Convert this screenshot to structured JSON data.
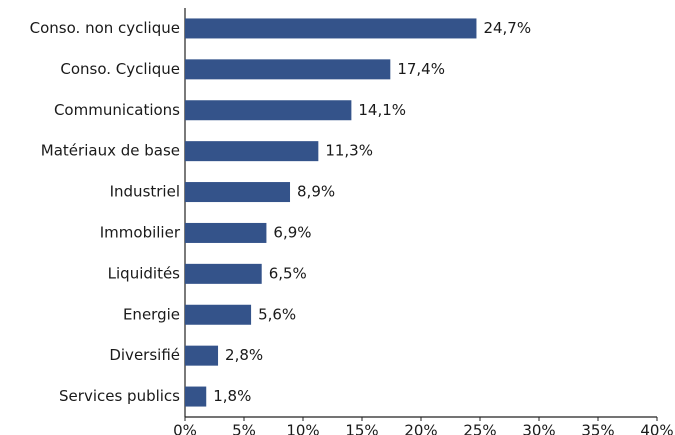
{
  "chart_data": {
    "type": "hbar",
    "categories": [
      "Conso. non cyclique",
      "Conso. Cyclique",
      "Communications",
      "Matériaux de base",
      "Industriel",
      "Immobilier",
      "Liquidités",
      "Energie",
      "Diversifié",
      "Services publics"
    ],
    "values": [
      24.7,
      17.4,
      14.1,
      11.3,
      8.9,
      6.9,
      6.5,
      5.6,
      2.8,
      1.8
    ],
    "value_labels": [
      "24,7%",
      "17,4%",
      "14,1%",
      "11,3%",
      "8,9%",
      "6,9%",
      "6,5%",
      "5,6%",
      "2,8%",
      "1,8%"
    ],
    "color": "#34538a",
    "xlim": [
      0,
      40
    ],
    "xticks": [
      {
        "value": 0,
        "label": "0%"
      },
      {
        "value": 5,
        "label": "5%"
      },
      {
        "value": 10,
        "label": "10%"
      },
      {
        "value": 15,
        "label": "15%"
      },
      {
        "value": 20,
        "label": "20%"
      },
      {
        "value": 25,
        "label": "25%"
      },
      {
        "value": 30,
        "label": "30%"
      },
      {
        "value": 35,
        "label": "35%"
      },
      {
        "value": 40,
        "label": "40%"
      }
    ]
  }
}
